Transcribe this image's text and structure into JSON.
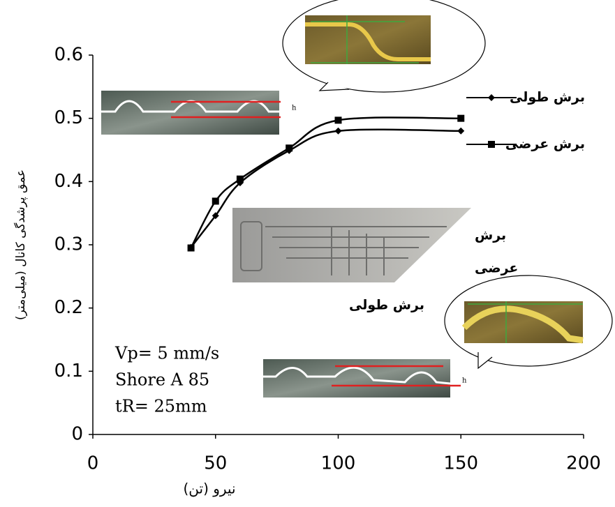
{
  "chart_data": {
    "type": "line",
    "x_label": "نیرو (تن)",
    "y_label": "عمق پرشدگی کانال (میلی‌متر)",
    "x": [
      40,
      50,
      60,
      80,
      100,
      150
    ],
    "series": [
      {
        "name": "برش طولی",
        "color": "#000000",
        "marker": "diamond",
        "values": [
          0.296,
          0.346,
          0.398,
          0.449,
          0.48,
          0.48
        ]
      },
      {
        "name": "برش عرضی",
        "color": "#000000",
        "marker": "square",
        "values": [
          0.295,
          0.369,
          0.404,
          0.453,
          0.497,
          0.5
        ]
      }
    ],
    "xlim": [
      0,
      200
    ],
    "xticks": [
      0,
      50,
      100,
      150,
      200
    ],
    "ylim": [
      0,
      0.6
    ],
    "yticks": [
      0,
      0.1,
      0.2,
      0.3,
      0.4,
      0.5,
      0.6
    ],
    "annotations": [
      "Vp= 5 mm/s",
      "Shore A 85",
      "tR= 25mm",
      "برش طولی",
      "برش",
      "عرضی",
      "h",
      "h"
    ]
  }
}
